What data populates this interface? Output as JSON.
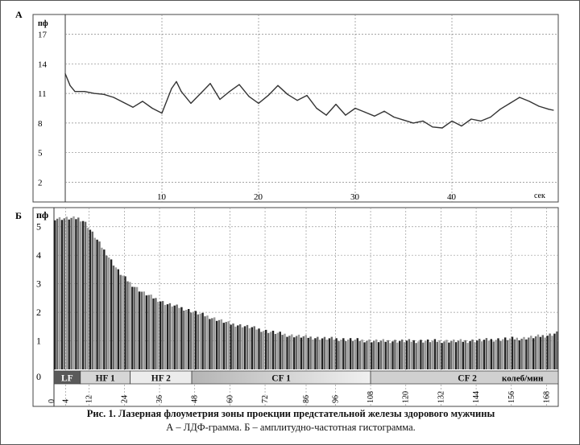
{
  "panel_a": {
    "label": "А"
  },
  "panel_b": {
    "label": "Б"
  },
  "caption": {
    "line1": "Рис. 1. Лазерная флоуметрия зоны проекции предстательной железы здорового мужчины",
    "line2": "А – ЛДФ-грамма. Б – амплитудно-частотная гистограмма."
  },
  "chart_data": [
    {
      "type": "line",
      "ylabel": "пф",
      "xlabel": "сек",
      "xlim": [
        0,
        51
      ],
      "ylim": [
        0,
        19
      ],
      "y_ticks": [
        2,
        5,
        8,
        11,
        14,
        17
      ],
      "x_ticks": [
        10,
        20,
        30,
        40
      ],
      "grid": true,
      "series": [
        {
          "values": [
            [
              0.0,
              13.0
            ],
            [
              0.5,
              11.8
            ],
            [
              1.0,
              11.2
            ],
            [
              2.0,
              11.2
            ],
            [
              3.0,
              11.0
            ],
            [
              4.0,
              10.9
            ],
            [
              5.0,
              10.6
            ],
            [
              6.0,
              10.1
            ],
            [
              7.0,
              9.6
            ],
            [
              8.0,
              10.2
            ],
            [
              9.0,
              9.5
            ],
            [
              10.0,
              9.0
            ],
            [
              11.0,
              11.5
            ],
            [
              11.5,
              12.2
            ],
            [
              12.0,
              11.2
            ],
            [
              13.0,
              10.0
            ],
            [
              14.0,
              11.0
            ],
            [
              15.0,
              12.0
            ],
            [
              16.0,
              10.4
            ],
            [
              17.0,
              11.2
            ],
            [
              18.0,
              11.9
            ],
            [
              19.0,
              10.7
            ],
            [
              20.0,
              10.0
            ],
            [
              21.0,
              10.8
            ],
            [
              22.0,
              11.8
            ],
            [
              23.0,
              10.9
            ],
            [
              24.0,
              10.3
            ],
            [
              25.0,
              10.8
            ],
            [
              26.0,
              9.5
            ],
            [
              27.0,
              8.8
            ],
            [
              28.0,
              9.9
            ],
            [
              29.0,
              8.8
            ],
            [
              30.0,
              9.5
            ],
            [
              31.0,
              9.1
            ],
            [
              32.0,
              8.7
            ],
            [
              33.0,
              9.2
            ],
            [
              34.0,
              8.6
            ],
            [
              35.0,
              8.3
            ],
            [
              36.0,
              8.0
            ],
            [
              37.0,
              8.2
            ],
            [
              38.0,
              7.6
            ],
            [
              39.0,
              7.5
            ],
            [
              40.0,
              8.2
            ],
            [
              41.0,
              7.7
            ],
            [
              42.0,
              8.4
            ],
            [
              43.0,
              8.2
            ],
            [
              44.0,
              8.6
            ],
            [
              45.0,
              9.4
            ],
            [
              46.0,
              10.0
            ],
            [
              47.0,
              10.6
            ],
            [
              48.0,
              10.2
            ],
            [
              49.0,
              9.7
            ],
            [
              50.0,
              9.4
            ],
            [
              50.5,
              9.3
            ]
          ]
        }
      ]
    },
    {
      "type": "bar",
      "ylabel": "пф",
      "xlabel": "колеб/мин",
      "xlim": [
        0,
        172
      ],
      "ylim": [
        0,
        5.5
      ],
      "y_ticks": [
        1,
        2,
        3,
        4,
        5
      ],
      "x_ticks": [
        4,
        12,
        24,
        36,
        48,
        60,
        72,
        86,
        96,
        108,
        120,
        132,
        144,
        156,
        168
      ],
      "x_origin_label": "0",
      "y_origin_label": "0",
      "grid": true,
      "bands": [
        {
          "label": "LF",
          "from": 0,
          "to": 9
        },
        {
          "label": "HF 1",
          "from": 9,
          "to": 26
        },
        {
          "label": "HF 2",
          "from": 26,
          "to": 47
        },
        {
          "label": "CF 1",
          "from": 47,
          "to": 108
        },
        {
          "label": "CF 2",
          "from": 108,
          "to": 172
        }
      ],
      "profile": [
        [
          0,
          5.3
        ],
        [
          4,
          5.3
        ],
        [
          8,
          5.3
        ],
        [
          10,
          5.2
        ],
        [
          14,
          4.6
        ],
        [
          18,
          4.0
        ],
        [
          22,
          3.4
        ],
        [
          26,
          3.0
        ],
        [
          30,
          2.7
        ],
        [
          34,
          2.5
        ],
        [
          38,
          2.3
        ],
        [
          42,
          2.2
        ],
        [
          48,
          2.0
        ],
        [
          54,
          1.8
        ],
        [
          60,
          1.6
        ],
        [
          66,
          1.5
        ],
        [
          72,
          1.35
        ],
        [
          80,
          1.2
        ],
        [
          90,
          1.1
        ],
        [
          100,
          1.05
        ],
        [
          110,
          1.0
        ],
        [
          120,
          1.0
        ],
        [
          130,
          1.0
        ],
        [
          140,
          1.0
        ],
        [
          150,
          1.05
        ],
        [
          160,
          1.1
        ],
        [
          168,
          1.2
        ],
        [
          172,
          1.3
        ]
      ]
    }
  ]
}
